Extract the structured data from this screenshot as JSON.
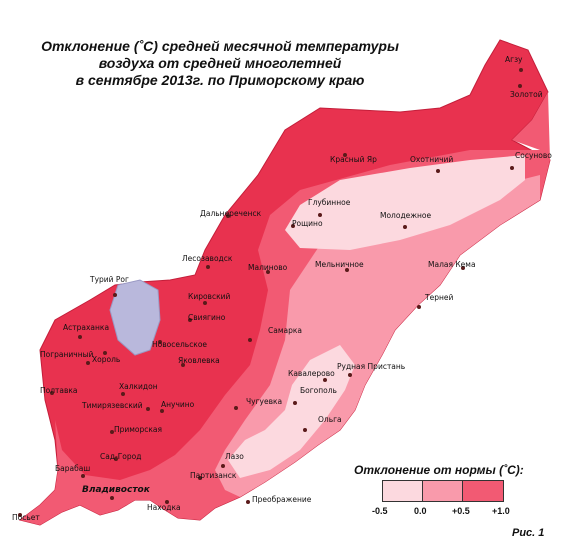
{
  "title": {
    "line1": "Отклонение (˚С) средней  месячной температуры",
    "line2": "воздуха  от средней многолетней",
    "line3": "в сентябре 2013г. по Приморскому краю"
  },
  "colors": {
    "zone_neg": "#fcd9df",
    "zone_0": "#f99aab",
    "zone_05": "#f25a73",
    "zone_10": "#e8324f",
    "lake": "#b9b8dc",
    "dot": "#5a1a1a"
  },
  "legend": {
    "title": "Отклонение от нормы (˚С):",
    "ticks": [
      "-0.5",
      "0.0",
      "+0.5",
      "+1.0"
    ]
  },
  "figure_label": "Рис. 1",
  "cities": [
    "Агзу",
    "Золотой",
    "Красный Яр",
    "Охотничий",
    "Сосуново",
    "Глубинное",
    "Рощино",
    "Молодежное",
    "Дальнереченск",
    "Лесозаводск",
    "Малиново",
    "Мельничное",
    "Малая Кема",
    "Турий Рог",
    "Кировский",
    "Свиягино",
    "Терней",
    "Астраханка",
    "Самарка",
    "Новосельское",
    "Пограничный",
    "Хороль",
    "Яковлевка",
    "Рудная Пристань",
    "Кавалерово",
    "Полтавка",
    "Халкидон",
    "Тимирязевский",
    "Анучино",
    "Чугуевка",
    "Богополь",
    "Приморская",
    "Ольга",
    "Лазо",
    "Сад-Город",
    "Барабаш",
    "Партизанск",
    "Владивосток",
    "Находка",
    "Преображение",
    "Посьет"
  ]
}
